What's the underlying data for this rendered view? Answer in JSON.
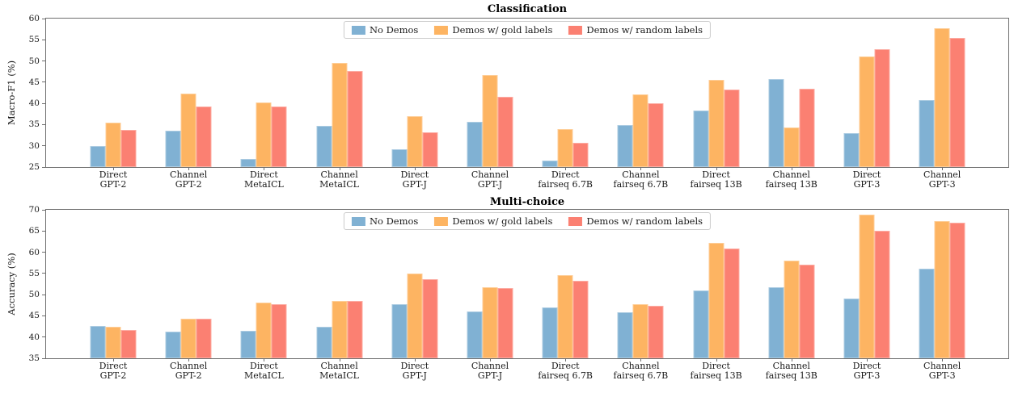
{
  "figure": {
    "background": "#ffffff",
    "text_color": "#1a1a1a",
    "spine_color": "#6e6e6e"
  },
  "chart_data": [
    {
      "type": "bar",
      "title": "Classification",
      "xlabel": "",
      "ylabel": "Macro-F1 (%)",
      "ylim": [
        25,
        60
      ],
      "yticks": [
        25,
        30,
        35,
        40,
        45,
        50,
        55,
        60
      ],
      "grid": false,
      "legend_position": "upper center",
      "categories": [
        {
          "line1": "Direct",
          "line2": "GPT-2"
        },
        {
          "line1": "Channel",
          "line2": "GPT-2"
        },
        {
          "line1": "Direct",
          "line2": "MetaICL"
        },
        {
          "line1": "Channel",
          "line2": "MetaICL"
        },
        {
          "line1": "Direct",
          "line2": "GPT-J"
        },
        {
          "line1": "Channel",
          "line2": "GPT-J"
        },
        {
          "line1": "Direct",
          "line2": "fairseq 6.7B"
        },
        {
          "line1": "Channel",
          "line2": "fairseq 6.7B"
        },
        {
          "line1": "Direct",
          "line2": "fairseq 13B"
        },
        {
          "line1": "Channel",
          "line2": "fairseq 13B"
        },
        {
          "line1": "Direct",
          "line2": "GPT-3"
        },
        {
          "line1": "Channel",
          "line2": "GPT-3"
        }
      ],
      "series": [
        {
          "name": "No Demos",
          "color": "#80B1D3",
          "values": [
            29.9,
            33.5,
            26.9,
            34.7,
            29.2,
            35.7,
            26.5,
            34.9,
            38.3,
            45.7,
            32.9,
            40.8
          ]
        },
        {
          "name": "Demos w/ gold labels",
          "color": "#FDB462",
          "values": [
            35.5,
            42.3,
            40.3,
            49.5,
            36.9,
            46.6,
            33.9,
            42.1,
            45.5,
            34.4,
            51.0,
            57.8
          ]
        },
        {
          "name": "Demos w/ random labels",
          "color": "#FB8072",
          "values": [
            33.8,
            39.2,
            39.2,
            47.6,
            33.2,
            41.6,
            30.7,
            40.1,
            43.3,
            43.4,
            52.8,
            55.4
          ]
        }
      ]
    },
    {
      "type": "bar",
      "title": "Multi-choice",
      "xlabel": "",
      "ylabel": "Accuracy (%)",
      "ylim": [
        35,
        70
      ],
      "yticks": [
        35,
        40,
        45,
        50,
        55,
        60,
        65,
        70
      ],
      "grid": false,
      "legend_position": "upper center",
      "categories": [
        {
          "line1": "Direct",
          "line2": "GPT-2"
        },
        {
          "line1": "Channel",
          "line2": "GPT-2"
        },
        {
          "line1": "Direct",
          "line2": "MetaICL"
        },
        {
          "line1": "Channel",
          "line2": "MetaICL"
        },
        {
          "line1": "Direct",
          "line2": "GPT-J"
        },
        {
          "line1": "Channel",
          "line2": "GPT-J"
        },
        {
          "line1": "Direct",
          "line2": "fairseq 6.7B"
        },
        {
          "line1": "Channel",
          "line2": "fairseq 6.7B"
        },
        {
          "line1": "Direct",
          "line2": "fairseq 13B"
        },
        {
          "line1": "Channel",
          "line2": "fairseq 13B"
        },
        {
          "line1": "Direct",
          "line2": "GPT-3"
        },
        {
          "line1": "Channel",
          "line2": "GPT-3"
        }
      ],
      "series": [
        {
          "name": "No Demos",
          "color": "#80B1D3",
          "values": [
            42.6,
            41.3,
            41.4,
            42.4,
            47.7,
            46.0,
            47.0,
            45.8,
            50.9,
            51.8,
            49.0,
            56.1
          ]
        },
        {
          "name": "Demos w/ gold labels",
          "color": "#FDB462",
          "values": [
            42.5,
            44.4,
            48.1,
            48.6,
            55.0,
            51.7,
            54.6,
            47.8,
            62.2,
            58.1,
            68.8,
            67.4
          ]
        },
        {
          "name": "Demos w/ random labels",
          "color": "#FB8072",
          "values": [
            41.6,
            44.3,
            47.8,
            48.5,
            53.6,
            51.5,
            53.3,
            47.4,
            60.9,
            57.1,
            65.0,
            67.0
          ]
        }
      ]
    }
  ]
}
